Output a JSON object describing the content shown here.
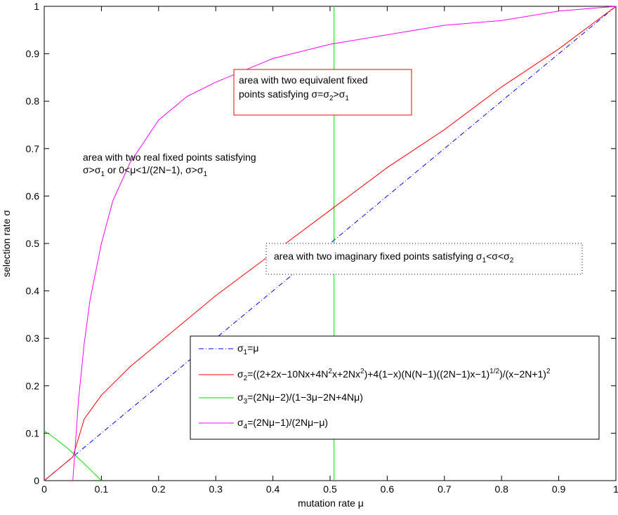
{
  "chart_data": {
    "type": "line",
    "title": "",
    "xlabel": "mutation rate μ",
    "ylabel": "selection rate σ",
    "xlim": [
      0,
      1
    ],
    "ylim": [
      0,
      1
    ],
    "grid": false,
    "legend_placement": "lower-right",
    "x_ticks": [
      0,
      0.1,
      0.2,
      0.3,
      0.4,
      0.5,
      0.6,
      0.7,
      0.8,
      0.9,
      1
    ],
    "y_ticks": [
      0,
      0.1,
      0.2,
      0.3,
      0.4,
      0.5,
      0.6,
      0.7,
      0.8,
      0.9,
      1
    ],
    "x_tick_labels": [
      "0",
      "0.1",
      "0.2",
      "0.3",
      "0.4",
      "0.5",
      "0.6",
      "0.7",
      "0.8",
      "0.9",
      "1"
    ],
    "y_tick_labels": [
      "0",
      "0.1",
      "0.2",
      "0.3",
      "0.4",
      "0.5",
      "0.6",
      "0.7",
      "0.8",
      "0.9",
      "1"
    ],
    "series": [
      {
        "name": "σ1=μ",
        "color": "#0000ff",
        "dash": "dashdot",
        "x": [
          0,
          1
        ],
        "y": [
          0,
          1
        ]
      },
      {
        "name": "σ2=((2+2x−10Nx+4N2x+2Nx2)+4(1−x)(N(N−1)((2N−1)x−1)1/2)/(x−2N+1)2",
        "color": "#ff0000",
        "dash": "solid",
        "x": [
          0,
          0.05,
          0.07,
          0.1,
          0.15,
          0.2,
          0.25,
          0.3,
          0.4,
          0.5,
          0.6,
          0.7,
          0.8,
          0.9,
          1
        ],
        "y": [
          0,
          0.05,
          0.13,
          0.18,
          0.24,
          0.29,
          0.34,
          0.39,
          0.48,
          0.57,
          0.66,
          0.74,
          0.83,
          0.91,
          1
        ]
      },
      {
        "name": "σ3=(2Nμ−2)/(1−3μ−2N+4Nμ)",
        "color": "#00dd00",
        "dash": "solid",
        "x": [
          0,
          0.02,
          0.04,
          0.05,
          0.06,
          0.08,
          0.1
        ],
        "y": [
          0.105,
          0.088,
          0.069,
          0.058,
          0.047,
          0.024,
          0
        ]
      },
      {
        "name": "σ4=(2Nμ−1)/(2Nμ−μ)",
        "color": "#ff00ff",
        "dash": "solid",
        "x": [
          0.05,
          0.06,
          0.07,
          0.08,
          0.1,
          0.12,
          0.15,
          0.2,
          0.25,
          0.3,
          0.4,
          0.5,
          0.6,
          0.7,
          0.8,
          0.9,
          1
        ],
        "y": [
          0,
          0.17,
          0.29,
          0.38,
          0.5,
          0.59,
          0.67,
          0.76,
          0.81,
          0.84,
          0.89,
          0.92,
          0.94,
          0.96,
          0.97,
          0.99,
          1
        ]
      }
    ],
    "vertical_line": {
      "x": 0.507,
      "color": "#00dd00"
    },
    "annotations": [
      {
        "lines": [
          "area with two equivalent fixed",
          "points satisfying σ=σ2>σ1"
        ],
        "box": "red"
      },
      {
        "lines": [
          "area with two real fixed points satisfying",
          "σ>σ1 or  0<μ<1/(2N−1), σ>σ1"
        ],
        "box": "none"
      },
      {
        "lines": [
          "area with two imaginary fixed points satisfying σ1<σ<σ2"
        ],
        "box": "dotted"
      }
    ]
  }
}
